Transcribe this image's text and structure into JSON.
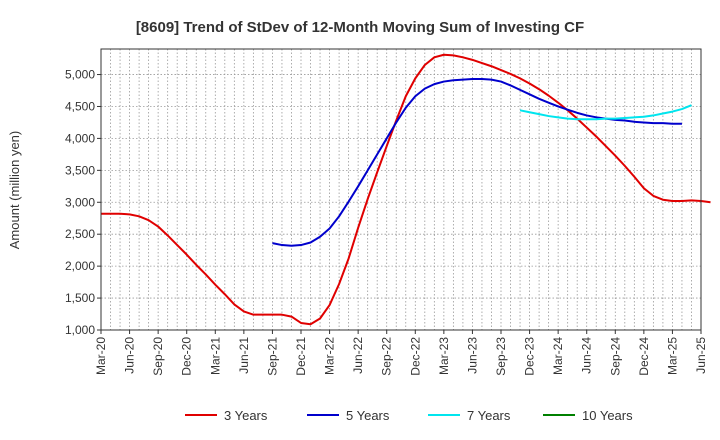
{
  "chart_data": {
    "type": "line",
    "title": "[8609]  Trend of StDev of 12-Month Moving Sum of Investing CF",
    "xlabel": "",
    "ylabel": "Amount (million yen)",
    "ylim": [
      1000,
      5400
    ],
    "yticks": [
      1000,
      1500,
      2000,
      2500,
      3000,
      3500,
      4000,
      4500,
      5000
    ],
    "ytick_labels": [
      "1,000",
      "1,500",
      "2,000",
      "2,500",
      "3,000",
      "3,500",
      "4,000",
      "4,500",
      "5,000"
    ],
    "xtick_labels": [
      "Mar-20",
      "Jun-20",
      "Sep-20",
      "Dec-20",
      "Mar-21",
      "Jun-21",
      "Sep-21",
      "Dec-21",
      "Mar-22",
      "Jun-22",
      "Sep-22",
      "Dec-22",
      "Mar-23",
      "Jun-23",
      "Sep-23",
      "Dec-23",
      "Mar-24",
      "Jun-24",
      "Sep-24",
      "Dec-24",
      "Mar-25",
      "Jun-25"
    ],
    "grid": true,
    "legend_position": "bottom",
    "series": [
      {
        "name": "3 Years",
        "color": "#e00000",
        "start_index": 0,
        "values": [
          2820,
          2820,
          2820,
          2810,
          2780,
          2720,
          2620,
          2480,
          2330,
          2180,
          2020,
          1870,
          1710,
          1560,
          1400,
          1290,
          1240,
          1240,
          1240,
          1240,
          1210,
          1110,
          1090,
          1180,
          1390,
          1720,
          2120,
          2600,
          3050,
          3470,
          3880,
          4280,
          4660,
          4940,
          5150,
          5270,
          5310,
          5300,
          5270,
          5230,
          5180,
          5130,
          5070,
          5010,
          4940,
          4860,
          4770,
          4670,
          4560,
          4440,
          4310,
          4170,
          4030,
          3880,
          3730,
          3570,
          3400,
          3220,
          3100,
          3040,
          3020,
          3020,
          3030,
          3020,
          3000
        ]
      },
      {
        "name": "5 Years",
        "color": "#0000cc",
        "start_index": 18,
        "values": [
          2360,
          2330,
          2320,
          2330,
          2370,
          2460,
          2590,
          2780,
          3010,
          3250,
          3500,
          3750,
          4000,
          4250,
          4480,
          4660,
          4780,
          4850,
          4890,
          4910,
          4920,
          4930,
          4930,
          4920,
          4890,
          4830,
          4760,
          4690,
          4620,
          4560,
          4500,
          4450,
          4400,
          4360,
          4330,
          4310,
          4290,
          4280,
          4260,
          4250,
          4240,
          4240,
          4230,
          4230
        ]
      },
      {
        "name": "7 Years",
        "color": "#00e5ee",
        "start_index": 44,
        "values": [
          4440,
          4410,
          4380,
          4350,
          4330,
          4310,
          4300,
          4300,
          4300,
          4310,
          4310,
          4320,
          4330,
          4340,
          4360,
          4390,
          4420,
          4460,
          4520
        ]
      },
      {
        "name": "10 Years",
        "color": "#008000",
        "start_index": 0,
        "values": []
      }
    ]
  }
}
